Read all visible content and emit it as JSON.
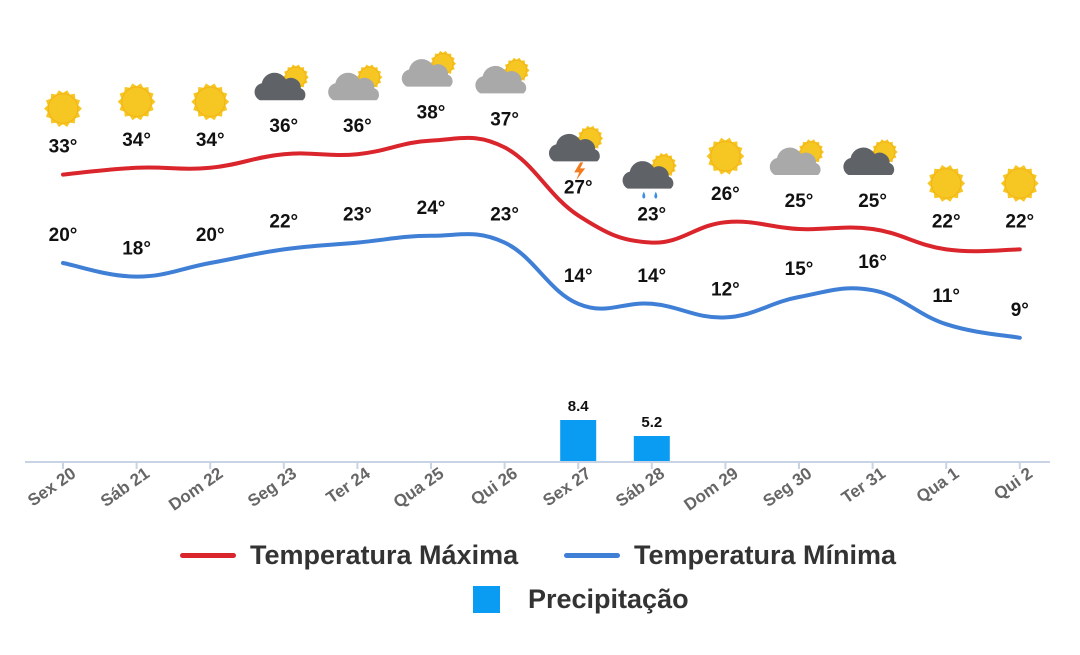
{
  "chart_data": {
    "type": "line",
    "categories": [
      "Sex 20",
      "Sáb 21",
      "Dom 22",
      "Seg 23",
      "Ter 24",
      "Qua 25",
      "Qui 26",
      "Sex 27",
      "Sáb 28",
      "Dom 29",
      "Seg 30",
      "Ter 31",
      "Qua 1",
      "Qui 2"
    ],
    "weather_icons": [
      "sun-icon",
      "sun-icon",
      "sun-icon",
      "dark-cloud-sun-icon",
      "cloud-sun-icon",
      "cloud-sun-icon",
      "cloud-sun-icon",
      "storm-icon",
      "rain-icon",
      "sun-icon",
      "cloud-sun-icon",
      "dark-cloud-sun-icon",
      "sun-icon",
      "sun-icon"
    ],
    "series": [
      {
        "name": "Temperatura Máxima",
        "values": [
          33,
          34,
          34,
          36,
          36,
          38,
          37,
          27,
          23,
          26,
          25,
          25,
          22,
          22
        ],
        "labels": [
          "33°",
          "34°",
          "34°",
          "36°",
          "36°",
          "38°",
          "37°",
          "27°",
          "23°",
          "26°",
          "25°",
          "25°",
          "22°",
          "22°"
        ],
        "color": "#d9252b"
      },
      {
        "name": "Temperatura Mínima",
        "values": [
          20,
          18,
          20,
          22,
          23,
          24,
          23,
          14,
          14,
          12,
          15,
          16,
          11,
          9
        ],
        "labels": [
          "20°",
          "18°",
          "20°",
          "22°",
          "23°",
          "24°",
          "23°",
          "14°",
          "14°",
          "12°",
          "15°",
          "16°",
          "11°",
          "9°"
        ],
        "color": "#3f7fd6"
      },
      {
        "name": "Precipitação",
        "type": "bar",
        "values": [
          null,
          null,
          null,
          null,
          null,
          null,
          null,
          8.4,
          5.2,
          null,
          null,
          null,
          null,
          null
        ],
        "labels": [
          "",
          "",
          "",
          "",
          "",
          "",
          "",
          "8.4",
          "5.2",
          "",
          "",
          "",
          "",
          ""
        ],
        "color": "#0a9cf2"
      }
    ],
    "legend": {
      "position": "bottom",
      "items": [
        "Temperatura Máxima",
        "Temperatura Mínima",
        "Precipitação"
      ]
    },
    "grid": false
  },
  "colors": {
    "tmax": "#d9252b",
    "tmin": "#3f7fd6",
    "precip": "#0a9cf2",
    "sun": "#f6c623",
    "cloud_light": "#a9a9a9",
    "cloud_dark": "#5f6368"
  }
}
